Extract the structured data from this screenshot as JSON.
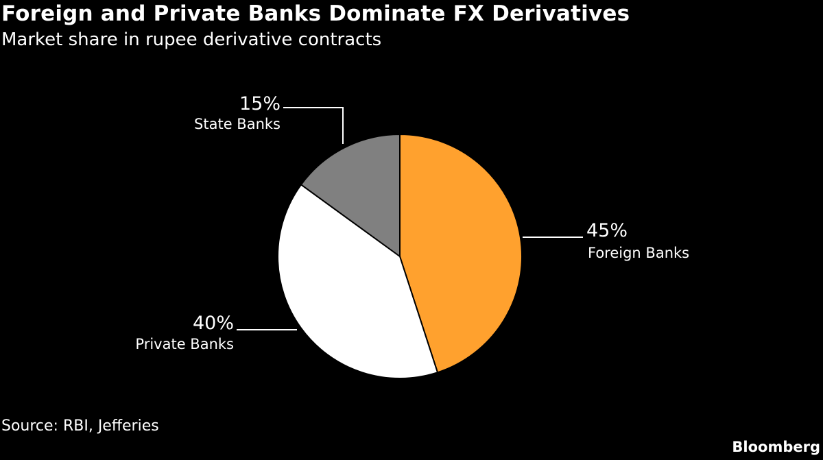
{
  "header": {
    "title": "Foreign and Private Banks Dominate FX Derivatives",
    "subtitle": "Market share in rupee derivative contracts"
  },
  "footer": {
    "source": "Source: RBI, Jefferies",
    "brand": "Bloomberg"
  },
  "chart_data": {
    "type": "pie",
    "start_angle_deg": 0,
    "direction": "clockwise",
    "slices": [
      {
        "key": "foreign",
        "label": "Foreign Banks",
        "value": 45,
        "value_label": "45%",
        "color": "#FFA12E"
      },
      {
        "key": "private",
        "label": "Private Banks",
        "value": 40,
        "value_label": "40%",
        "color": "#FFFFFF"
      },
      {
        "key": "state",
        "label": "State Banks",
        "value": 15,
        "value_label": "15%",
        "color": "#808080"
      }
    ],
    "background": "#000000",
    "slice_border_color": "#000000",
    "leader_line_color": "#FFFFFF",
    "label_color": "#FFFFFF"
  }
}
